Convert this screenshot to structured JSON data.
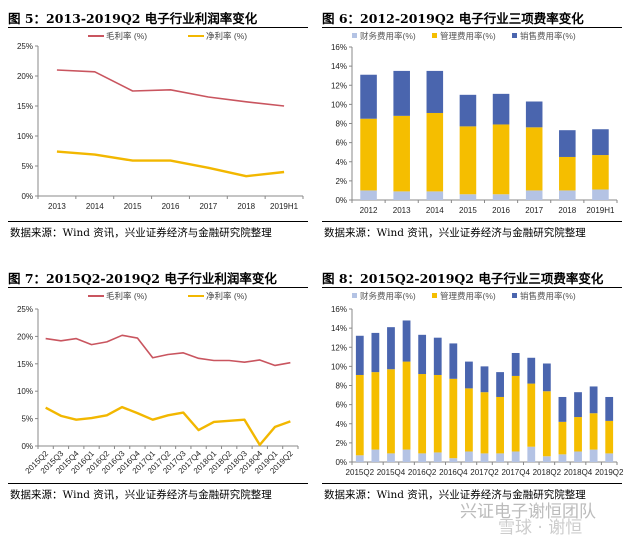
{
  "charts": [
    {
      "title": "图 5：2013-2019Q2 电子行业利润率变化",
      "source": "数据来源：Wind 资讯，兴业证券经济与金融研究院整理"
    },
    {
      "title": "图 6：2012-2019Q2 电子行业三项费率变化",
      "source": "数据来源：Wind 资讯，兴业证券经济与金融研究院整理"
    },
    {
      "title": "图 7：2015Q2-2019Q2 电子行业利润率变化",
      "source": "数据来源：Wind 资讯，兴业证券经济与金融研究院整理"
    },
    {
      "title": "图 8：2015Q2-2019Q2 电子行业三项费率变化",
      "source": "数据来源：Wind 资讯，兴业证券经济与金融研究院整理"
    }
  ],
  "watermark": {
    "line1": "兴证电子谢恒团队",
    "line2": "雪球 · 谢恒"
  },
  "colors": {
    "gross": "#C9555F",
    "net": "#F2B700",
    "finance": "#B4C3E4",
    "admin": "#F5BE00",
    "sales": "#4A65AE",
    "axis": "#888888"
  },
  "chart_data": [
    {
      "type": "line",
      "title": "图 5：2013-2019Q2 电子行业利润率变化",
      "categories": [
        "2013",
        "2014",
        "2015",
        "2016",
        "2017",
        "2018",
        "2019H1"
      ],
      "series": [
        {
          "name": "毛利率 (%)",
          "values": [
            21.0,
            20.7,
            17.5,
            17.7,
            16.5,
            15.7,
            15.0
          ]
        },
        {
          "name": "净利率 (%)",
          "values": [
            7.4,
            6.9,
            5.9,
            5.9,
            4.7,
            3.3,
            4.0
          ]
        }
      ],
      "yticks": [
        "0%",
        "5%",
        "10%",
        "15%",
        "20%",
        "25%"
      ],
      "ylim": [
        0,
        25
      ],
      "ystep": 5,
      "legend": "top",
      "grid": false
    },
    {
      "type": "bar",
      "stacked": true,
      "title": "图 6：2012-2019Q2 电子行业三项费率变化",
      "categories": [
        "2012",
        "2013",
        "2014",
        "2015",
        "2016",
        "2017",
        "2018",
        "2019H1"
      ],
      "series": [
        {
          "name": "财务费用率(%)",
          "values": [
            1.0,
            0.9,
            0.9,
            0.6,
            0.6,
            1.0,
            1.0,
            1.1
          ]
        },
        {
          "name": "管理费用率(%)",
          "values": [
            7.5,
            7.9,
            8.2,
            7.1,
            7.3,
            6.6,
            3.5,
            3.6
          ]
        },
        {
          "name": "销售费用率(%)",
          "values": [
            4.6,
            4.7,
            4.4,
            3.3,
            3.2,
            2.7,
            2.8,
            2.7
          ]
        }
      ],
      "yticks": [
        "0%",
        "2%",
        "4%",
        "6%",
        "8%",
        "10%",
        "12%",
        "14%",
        "16%"
      ],
      "ylim": [
        0,
        16
      ],
      "ystep": 2,
      "legend": "top",
      "grid": false
    },
    {
      "type": "line",
      "title": "图 7：2015Q2-2019Q2 电子行业利润率变化",
      "categories": [
        "2015Q2",
        "2015Q3",
        "2015Q4",
        "2016Q1",
        "2016Q2",
        "2016Q3",
        "2016Q4",
        "2017Q1",
        "2017Q2",
        "2017Q3",
        "2017Q4",
        "2018Q1",
        "2018Q2",
        "2018Q3",
        "2018Q4",
        "2019Q1",
        "2019Q2"
      ],
      "series": [
        {
          "name": "毛利率 (%)",
          "values": [
            19.6,
            19.2,
            19.6,
            18.5,
            19.0,
            20.2,
            19.7,
            16.1,
            16.7,
            17.0,
            16.0,
            15.6,
            15.6,
            15.3,
            15.7,
            14.7,
            15.2
          ]
        },
        {
          "name": "净利率 (%)",
          "values": [
            7.0,
            5.5,
            4.8,
            5.1,
            5.6,
            7.1,
            6.0,
            4.8,
            5.6,
            6.1,
            2.9,
            4.4,
            4.6,
            4.8,
            0.2,
            3.5,
            4.5
          ]
        }
      ],
      "yticks": [
        "0%",
        "5%",
        "10%",
        "15%",
        "20%",
        "25%"
      ],
      "ylim": [
        0,
        25
      ],
      "ystep": 5,
      "legend": "top",
      "grid": false
    },
    {
      "type": "bar",
      "stacked": true,
      "title": "图 8：2015Q2-2019Q2 电子行业三项费率变化",
      "categories": [
        "2015Q2",
        "2015Q3",
        "2015Q4",
        "2016Q1",
        "2016Q2",
        "2016Q3",
        "2016Q4",
        "2017Q1",
        "2017Q2",
        "2017Q3",
        "2017Q4",
        "2018Q1",
        "2018Q2",
        "2018Q3",
        "2018Q4",
        "2019Q1",
        "2019Q2"
      ],
      "xtick_labels_shown": [
        "2015Q2",
        "2015Q4",
        "2016Q2",
        "2016Q4",
        "2017Q2",
        "2017Q4",
        "2018Q2",
        "2018Q4",
        "2019Q2"
      ],
      "series": [
        {
          "name": "财务费用率(%)",
          "values": [
            0.7,
            1.3,
            0.9,
            1.3,
            0.9,
            1.0,
            0.4,
            1.1,
            0.9,
            0.9,
            1.1,
            1.6,
            0.6,
            0.8,
            1.1,
            1.3,
            0.9
          ]
        },
        {
          "name": "管理费用率(%)",
          "values": [
            8.4,
            8.1,
            8.8,
            9.2,
            8.3,
            8.1,
            8.3,
            6.6,
            6.4,
            5.9,
            7.9,
            6.6,
            6.8,
            3.4,
            3.6,
            3.8,
            3.4
          ]
        },
        {
          "name": "销售费用率(%)",
          "values": [
            4.1,
            4.1,
            4.4,
            4.3,
            4.1,
            3.9,
            3.7,
            2.8,
            2.7,
            2.6,
            2.4,
            2.7,
            2.9,
            2.6,
            2.6,
            2.8,
            2.5
          ]
        }
      ],
      "yticks": [
        "0%",
        "2%",
        "4%",
        "6%",
        "8%",
        "10%",
        "12%",
        "14%",
        "16%"
      ],
      "ylim": [
        0,
        16
      ],
      "ystep": 2,
      "legend": "top",
      "grid": false
    }
  ]
}
